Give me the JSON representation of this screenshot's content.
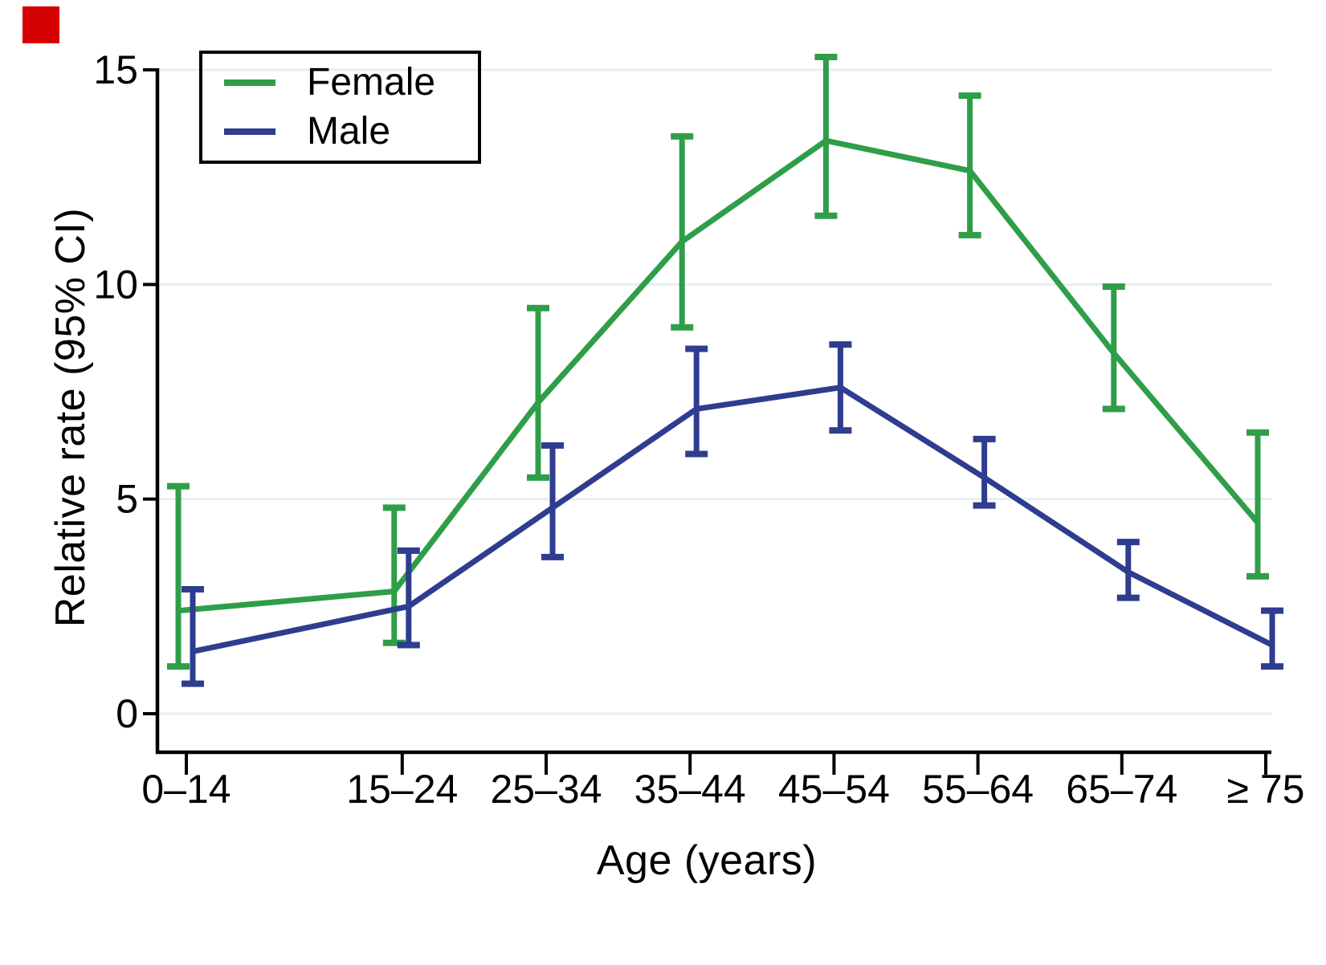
{
  "corner_marker": {
    "color": "#D40000"
  },
  "chart_data": {
    "type": "line",
    "title": "",
    "xlabel": "Age (years)",
    "ylabel": "Relative rate (95% CI)",
    "categories": [
      "0–14",
      "15–24",
      "25–34",
      "35–44",
      "45–54",
      "55–64",
      "65–74",
      "≥ 75"
    ],
    "x_values": [
      7,
      22,
      32,
      42,
      52,
      62,
      72,
      82
    ],
    "yticks": [
      0,
      5,
      10,
      15
    ],
    "ytick_labels": [
      "0",
      "5",
      "10",
      "15"
    ],
    "ylim": [
      0,
      15
    ],
    "grid": true,
    "gridline_color": "#E8EFF0",
    "axis_color": "#000000",
    "legend_position": "top-left-inside",
    "error_bars": "95% confidence interval with caps",
    "series": [
      {
        "name": "Female",
        "color": "#2F9E48",
        "values": [
          2.4,
          2.85,
          7.25,
          11.0,
          13.35,
          12.65,
          8.4,
          4.45
        ],
        "ci_low": [
          1.1,
          1.65,
          5.5,
          9.0,
          11.6,
          11.15,
          7.1,
          3.2
        ],
        "ci_high": [
          5.3,
          4.8,
          9.45,
          13.45,
          15.3,
          14.4,
          9.95,
          6.55
        ]
      },
      {
        "name": "Male",
        "color": "#2E3D8F",
        "values": [
          1.45,
          2.5,
          4.8,
          7.1,
          7.6,
          5.5,
          3.3,
          1.6
        ],
        "ci_low": [
          0.7,
          1.6,
          3.65,
          6.05,
          6.6,
          4.85,
          2.7,
          1.1
        ],
        "ci_high": [
          2.9,
          3.8,
          6.25,
          8.5,
          8.6,
          6.4,
          4.0,
          2.4
        ]
      }
    ]
  }
}
